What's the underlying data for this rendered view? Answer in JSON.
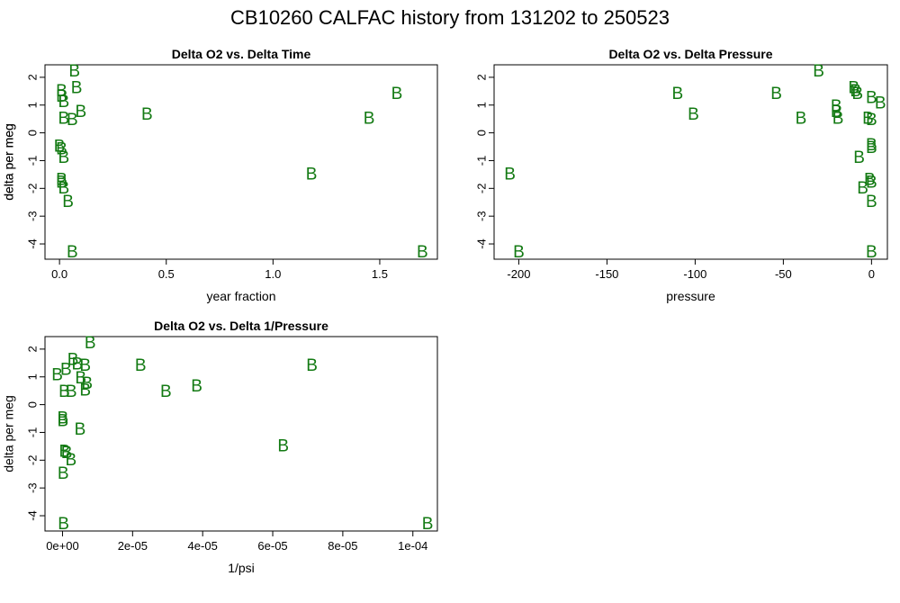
{
  "page": {
    "title": "CB10260   CALFAC history from  131202  to  250523"
  },
  "colors": {
    "points": "#137a13"
  },
  "chart_data": [
    {
      "type": "scatter",
      "title": "Delta O2 vs. Delta Time",
      "xlabel": "year fraction",
      "ylabel": "delta per meg",
      "marker": "B",
      "xlim": [
        -0.068,
        1.77
      ],
      "ylim": [
        -4.55,
        2.45
      ],
      "xticks": [
        0.0,
        0.5,
        1.0,
        1.5
      ],
      "xtick_labels": [
        "0.0",
        "0.5",
        "1.0",
        "1.5"
      ],
      "yticks": [
        -4,
        -3,
        -2,
        -1,
        0,
        1,
        2
      ],
      "ytick_labels": [
        "-4",
        "-3",
        "-2",
        "-1",
        "0",
        "1",
        "2"
      ],
      "points": [
        {
          "x": 0.07,
          "y": 2.2
        },
        {
          "x": 0.08,
          "y": 1.6
        },
        {
          "x": 0.01,
          "y": 1.5
        },
        {
          "x": 0.01,
          "y": 1.3
        },
        {
          "x": 0.02,
          "y": 1.1
        },
        {
          "x": 0.1,
          "y": 0.75
        },
        {
          "x": 0.02,
          "y": 0.5
        },
        {
          "x": 0.06,
          "y": 0.45
        },
        {
          "x": 0.41,
          "y": 0.65
        },
        {
          "x": 1.45,
          "y": 0.5
        },
        {
          "x": 1.58,
          "y": 1.4
        },
        {
          "x": 0.0,
          "y": -0.5
        },
        {
          "x": 0.01,
          "y": -0.6
        },
        {
          "x": 0.02,
          "y": -0.9
        },
        {
          "x": 0.01,
          "y": -1.7
        },
        {
          "x": 0.01,
          "y": -1.8
        },
        {
          "x": 0.02,
          "y": -2.0
        },
        {
          "x": 0.04,
          "y": -2.5
        },
        {
          "x": 0.06,
          "y": -4.3
        },
        {
          "x": 1.18,
          "y": -1.5
        },
        {
          "x": 1.7,
          "y": -4.3
        }
      ]
    },
    {
      "type": "scatter",
      "title": "Delta O2 vs. Delta Pressure",
      "xlabel": "pressure",
      "ylabel": "delta per meg",
      "marker": "B",
      "xlim": [
        -214,
        9
      ],
      "ylim": [
        -4.55,
        2.45
      ],
      "xticks": [
        -200,
        -150,
        -100,
        -50,
        0
      ],
      "xtick_labels": [
        "-200",
        "-150",
        "-100",
        "-50",
        "0"
      ],
      "yticks": [
        -4,
        -3,
        -2,
        -1,
        0,
        1,
        2
      ],
      "ytick_labels": [
        "-4",
        "-3",
        "-2",
        "-1",
        "0",
        "1",
        "2"
      ],
      "points": [
        {
          "x": -30,
          "y": 2.2
        },
        {
          "x": -110,
          "y": 1.4
        },
        {
          "x": -101,
          "y": 0.65
        },
        {
          "x": -54,
          "y": 1.4
        },
        {
          "x": -40,
          "y": 0.5
        },
        {
          "x": -10,
          "y": 1.6
        },
        {
          "x": -9,
          "y": 1.5
        },
        {
          "x": -8,
          "y": 1.4
        },
        {
          "x": 0,
          "y": 1.25
        },
        {
          "x": 5,
          "y": 1.05
        },
        {
          "x": -20,
          "y": 0.95
        },
        {
          "x": -20,
          "y": 0.75
        },
        {
          "x": -19,
          "y": 0.5
        },
        {
          "x": -2,
          "y": 0.5
        },
        {
          "x": 0,
          "y": 0.45
        },
        {
          "x": 0,
          "y": -0.45
        },
        {
          "x": 0,
          "y": -0.55
        },
        {
          "x": -7,
          "y": -0.9
        },
        {
          "x": -1,
          "y": -1.7
        },
        {
          "x": 0,
          "y": -1.8
        },
        {
          "x": -5,
          "y": -2.0
        },
        {
          "x": 0,
          "y": -2.5
        },
        {
          "x": -205,
          "y": -1.5
        },
        {
          "x": -200,
          "y": -4.3
        },
        {
          "x": 0,
          "y": -4.3
        }
      ]
    },
    {
      "type": "scatter",
      "title": "Delta O2 vs. Delta 1/Pressure",
      "xlabel": "1/psi",
      "ylabel": "delta per meg",
      "marker": "B",
      "xlim": [
        -5e-06,
        0.000107
      ],
      "ylim": [
        -4.55,
        2.45
      ],
      "xticks": [
        0,
        2e-05,
        4e-05,
        6e-05,
        8e-05,
        0.0001
      ],
      "xtick_labels": [
        "0e+00",
        "2e-05",
        "4e-05",
        "6e-05",
        "8e-05",
        "1e-04"
      ],
      "yticks": [
        -4,
        -3,
        -2,
        -1,
        0,
        1,
        2
      ],
      "ytick_labels": [
        "-4",
        "-3",
        "-2",
        "-1",
        "0",
        "1",
        "2"
      ],
      "points": [
        {
          "x": 7.9e-06,
          "y": 2.2
        },
        {
          "x": 3e-06,
          "y": 1.6
        },
        {
          "x": 4.2e-06,
          "y": 1.45
        },
        {
          "x": 6.5e-06,
          "y": 1.4
        },
        {
          "x": 1e-06,
          "y": 1.25
        },
        {
          "x": -1.5e-06,
          "y": 1.05
        },
        {
          "x": 5.2e-06,
          "y": 0.95
        },
        {
          "x": 7e-06,
          "y": 0.75
        },
        {
          "x": 6.5e-06,
          "y": 0.5
        },
        {
          "x": 5e-07,
          "y": 0.45
        },
        {
          "x": 2.5e-06,
          "y": 0.45
        },
        {
          "x": 2.23e-05,
          "y": 1.4
        },
        {
          "x": 2.95e-05,
          "y": 0.45
        },
        {
          "x": 3.83e-05,
          "y": 0.65
        },
        {
          "x": 7.12e-05,
          "y": 1.4
        },
        {
          "x": 1e-07,
          "y": -0.5
        },
        {
          "x": 1e-07,
          "y": -0.6
        },
        {
          "x": 5e-06,
          "y": -0.9
        },
        {
          "x": 6e-07,
          "y": -1.7
        },
        {
          "x": 1.2e-06,
          "y": -1.75
        },
        {
          "x": 2.4e-06,
          "y": -2.0
        },
        {
          "x": 2e-07,
          "y": -2.5
        },
        {
          "x": 6.3e-05,
          "y": -1.5
        },
        {
          "x": 3e-07,
          "y": -4.3
        },
        {
          "x": 0.0001042,
          "y": -4.3
        }
      ]
    }
  ]
}
